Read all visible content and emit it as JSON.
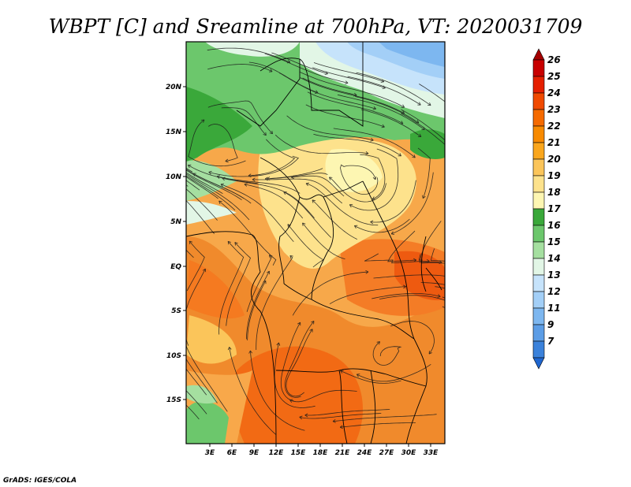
{
  "title": "WBPT [C] and Sreamline at 700hPa, VT: 2020031709",
  "credit": "GrADS: IGES/COLA",
  "map": {
    "variable": "Wet-bulb potential temperature",
    "level": "700hPa",
    "valid_time": "2020031709",
    "lon_labels": [
      "3E",
      "6E",
      "9E",
      "12E",
      "15E",
      "18E",
      "21E",
      "24E",
      "27E",
      "30E",
      "33E"
    ],
    "lat_labels": [
      "20N",
      "15N",
      "10N",
      "5N",
      "EQ",
      "5S",
      "10S",
      "15S"
    ],
    "overlay": "streamlines",
    "boundaries": "country borders and coastlines"
  },
  "colorbar": {
    "labels": [
      "26",
      "25",
      "24",
      "23",
      "22",
      "21",
      "20",
      "19",
      "18",
      "17",
      "16",
      "15",
      "14",
      "13",
      "12",
      "11",
      "9",
      "7"
    ],
    "colors": [
      "#a50000",
      "#c80000",
      "#e51f00",
      "#f04a00",
      "#f56a00",
      "#f88a00",
      "#faa61c",
      "#fbc55a",
      "#fde28c",
      "#fdf6b2",
      "#3aa83a",
      "#6cc76c",
      "#a5dfa0",
      "#e2f6e6",
      "#c6e3fb",
      "#a3cff7",
      "#7db7f0",
      "#5c9de6",
      "#3b82db",
      "#1f66cf"
    ]
  }
}
